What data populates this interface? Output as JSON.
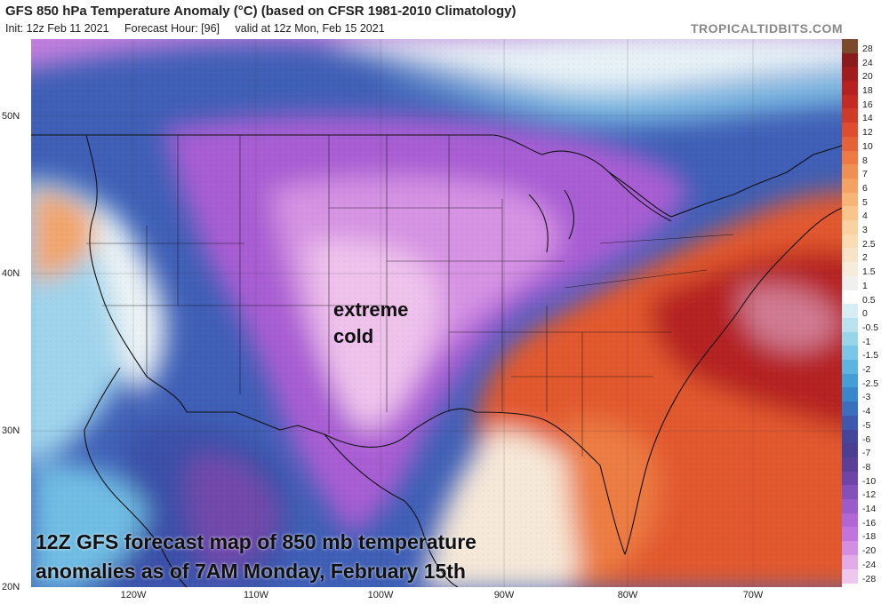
{
  "header": {
    "title": "GFS 850 hPa Temperature Anomaly (°C) (based on CFSR 1981-2010 Climatology)",
    "init": "Init: 12z Feb 11 2021",
    "forecast_hour": "Forecast Hour: [96]",
    "valid": "valid at 12z Mon, Feb 15 2021",
    "brand": "TROPICALTIDBITS.COM"
  },
  "axes": {
    "lat_labels": [
      "50N",
      "40N",
      "30N",
      "20N"
    ],
    "lon_labels": [
      "120W",
      "110W",
      "100W",
      "90W",
      "80W",
      "70W"
    ]
  },
  "colorbar": {
    "labels": [
      "28",
      "24",
      "20",
      "18",
      "16",
      "14",
      "12",
      "10",
      "8",
      "7",
      "6",
      "5",
      "4",
      "3",
      "2.5",
      "2",
      "1.5",
      "1",
      "0.5",
      "0",
      "-0.5",
      "-1",
      "-1.5",
      "-2",
      "-2.5",
      "-3",
      "-4",
      "-5",
      "-6",
      "-7",
      "-8",
      "-10",
      "-12",
      "-14",
      "-16",
      "-18",
      "-20",
      "-24",
      "-28"
    ],
    "colors": [
      "#7a4a2a",
      "#8b1a1a",
      "#a11c1c",
      "#b62020",
      "#c42a22",
      "#d23a28",
      "#dd4d2e",
      "#e56236",
      "#ec7a42",
      "#f08f52",
      "#f3a262",
      "#f6b476",
      "#f8c58c",
      "#f9d2a2",
      "#f9dcb4",
      "#f7e4c8",
      "#f5ecdc",
      "#f1f0ee",
      "#ffffff",
      "#d6eef3",
      "#b8e3ee",
      "#97d5ea",
      "#79c6e6",
      "#5cb4e0",
      "#459fd7",
      "#3a88cc",
      "#3a6fbd",
      "#3d58ad",
      "#42479c",
      "#4b3f94",
      "#5a3f99",
      "#6d44a8",
      "#8450bb",
      "#9a5bcb",
      "#b066d6",
      "#c274de",
      "#d28ee2",
      "#e0abe7",
      "#eec7ee"
    ]
  },
  "annotations": {
    "extreme_cold": "extreme cold",
    "caption_line1": "12Z GFS forecast map of 850 mb temperature",
    "caption_line2": "anomalies as of 7AM Monday, February 15th"
  }
}
